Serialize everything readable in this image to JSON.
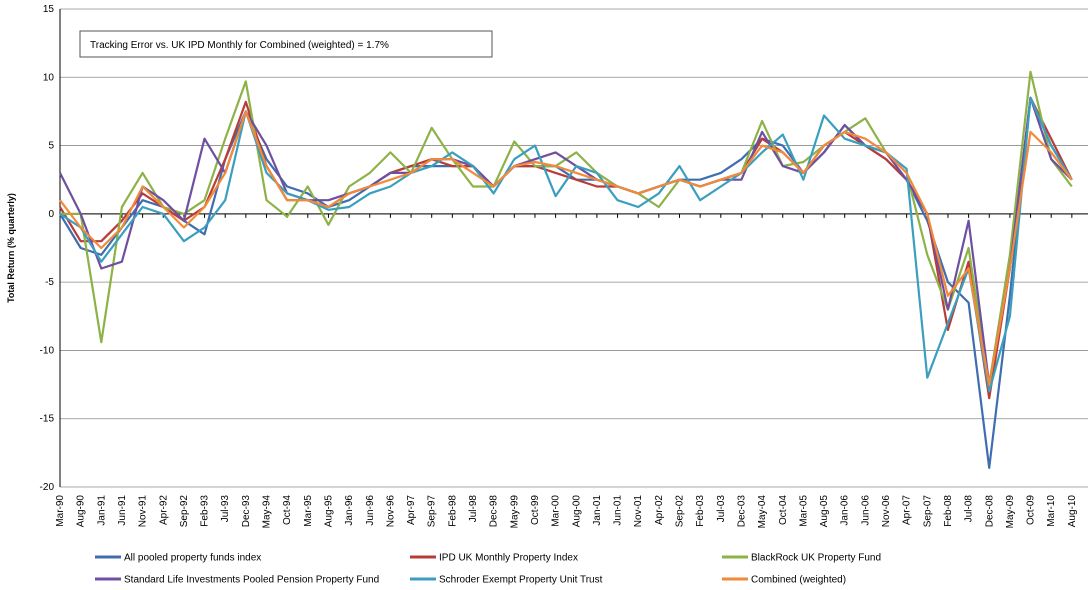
{
  "chart_data": {
    "type": "line",
    "annotation": "Tracking Error vs. UK IPD Monthly for Combined (weighted) = 1.7%",
    "y_label": "Total Return (% quarterly)",
    "ylim": [
      -20,
      15
    ],
    "yticks": [
      -20,
      -15,
      -10,
      -5,
      0,
      5,
      10,
      15
    ],
    "grid": true,
    "categories": [
      "Mar-90",
      "Aug-90",
      "Jan-91",
      "Jun-91",
      "Nov-91",
      "Apr-92",
      "Sep-92",
      "Feb-93",
      "Jul-93",
      "Dec-93",
      "May-94",
      "Oct-94",
      "Mar-95",
      "Aug-95",
      "Jan-96",
      "Jun-96",
      "Nov-96",
      "Apr-97",
      "Sep-97",
      "Feb-98",
      "Jul-98",
      "Dec-98",
      "May-99",
      "Oct-99",
      "Mar-00",
      "Aug-00",
      "Jan-01",
      "Jun-01",
      "Nov-01",
      "Apr-02",
      "Sep-02",
      "Feb-03",
      "Jul-03",
      "Dec-03",
      "May-04",
      "Oct-04",
      "Mar-05",
      "Aug-05",
      "Jan-06",
      "Jun-06",
      "Nov-06",
      "Apr-07",
      "Sep-07",
      "Feb-08",
      "Jul-08",
      "Dec-08",
      "May-09",
      "Oct-09",
      "Mar-10",
      "Aug-10"
    ],
    "series": [
      {
        "name": "All pooled property funds index",
        "color": "#3f6eb0",
        "values": [
          0,
          -2.5,
          -3,
          -1,
          1,
          0.5,
          -0.5,
          -1.5,
          4,
          7.5,
          4,
          2,
          1.5,
          0.5,
          1,
          2,
          3,
          3.5,
          3.5,
          3.5,
          3.5,
          2,
          3.5,
          3.5,
          3.5,
          2.5,
          2.5,
          2,
          1.5,
          2,
          2.5,
          2.5,
          3,
          4,
          5.5,
          5,
          3,
          4.5,
          6.5,
          5,
          4,
          2.5,
          -0.5,
          -5,
          -6.5,
          -18.6,
          -6,
          8.5,
          5,
          2.5
        ]
      },
      {
        "name": "IPD UK Monthly Property Index",
        "color": "#b83c38",
        "values": [
          0.5,
          -2,
          -2,
          -0.5,
          1.5,
          0.5,
          -0.5,
          0.5,
          4,
          8.2,
          3.5,
          1,
          1,
          0.5,
          1.5,
          2,
          3,
          3.5,
          4,
          3.5,
          3.5,
          2,
          3.5,
          3.5,
          3,
          2.5,
          2,
          2,
          1.5,
          2,
          2.5,
          2,
          2.5,
          3,
          5.5,
          4.5,
          3,
          5,
          6,
          5,
          4,
          2.5,
          0,
          -8.5,
          -3.5,
          -13.5,
          -4,
          8.5,
          5.5,
          2.5
        ]
      },
      {
        "name": "BlackRock UK Property Fund",
        "color": "#8db247",
        "values": [
          0,
          0,
          -9.4,
          0.5,
          3,
          0.5,
          0,
          1,
          5.5,
          9.7,
          1,
          -0.2,
          2,
          -0.8,
          2,
          3,
          4.5,
          3,
          6.3,
          4,
          2,
          2,
          5.3,
          3.5,
          3.5,
          4.5,
          3,
          2,
          1.5,
          0.5,
          2.5,
          2,
          2.5,
          3,
          6.8,
          3.5,
          3.8,
          5,
          6,
          7,
          4.5,
          3,
          -3,
          -7,
          -2.5,
          -12.5,
          -3,
          10.4,
          4,
          2
        ]
      },
      {
        "name": "Standard Life Investments  Pooled Pension Property Fund",
        "color": "#6f4fa0",
        "values": [
          3,
          0,
          -4,
          -3.5,
          2,
          1,
          -0.5,
          5.5,
          3,
          7.5,
          5,
          1.5,
          1,
          1,
          1.5,
          2,
          3,
          3,
          4,
          4,
          3.5,
          2,
          3.5,
          4,
          4.5,
          3.5,
          2.5,
          2,
          1.5,
          2,
          2.5,
          2,
          2.5,
          2.5,
          6,
          3.5,
          3,
          4.5,
          6.5,
          5,
          4.5,
          2.5,
          0,
          -7,
          -0.5,
          -12.5,
          -4,
          8.5,
          4,
          2.5
        ]
      },
      {
        "name": "Schroder Exempt  Property Unit Trust",
        "color": "#3a9fbf",
        "values": [
          0,
          -1,
          -3.5,
          -1.5,
          0.5,
          0,
          -2,
          -1,
          1,
          7.5,
          3,
          1.5,
          1,
          0.3,
          0.5,
          1.5,
          2,
          3,
          3.5,
          4.5,
          3.5,
          1.5,
          4,
          5,
          1.3,
          3.5,
          3,
          1,
          0.5,
          1.5,
          3.5,
          1,
          2,
          3,
          4.5,
          5.8,
          2.5,
          7.2,
          5.5,
          5,
          4.5,
          3.3,
          -12,
          -8,
          -4,
          -13,
          -7.5,
          8.5,
          5,
          2.5
        ]
      },
      {
        "name": "Combined (weighted)",
        "color": "#f28a3a",
        "values": [
          1,
          -1,
          -2.5,
          -1,
          2,
          0.5,
          -1,
          0.5,
          3,
          7.5,
          3.5,
          1,
          1,
          0.5,
          1.5,
          2,
          2.5,
          3,
          4,
          4,
          3,
          2,
          3.5,
          3.8,
          3.5,
          3,
          2.5,
          2,
          1.5,
          2,
          2.5,
          2,
          2.5,
          3,
          5,
          4.5,
          3,
          5,
          6,
          5.5,
          4.5,
          3,
          0,
          -6,
          -4,
          -12.5,
          -4,
          6,
          4.5,
          2.5
        ]
      }
    ]
  }
}
